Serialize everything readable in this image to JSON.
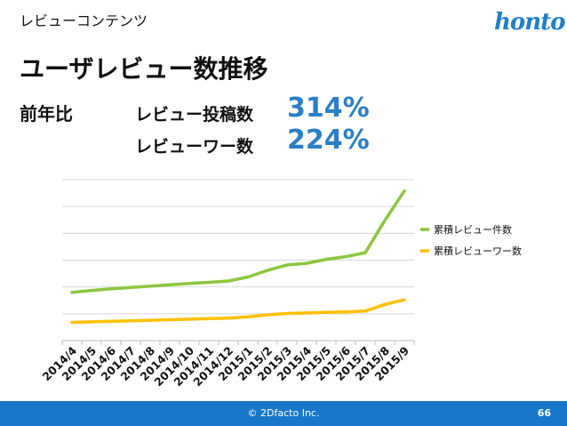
{
  "header": {
    "section": "レビューコンテンツ",
    "logo_text": "honto"
  },
  "title": "ユーザレビュー数推移",
  "yoy": {
    "label": "前年比",
    "items": [
      {
        "label": "レビュー投稿数",
        "value": "314%"
      },
      {
        "label": "レビューワー数",
        "value": "224%"
      }
    ]
  },
  "chart_data": {
    "type": "line",
    "title": "",
    "xlabel": "",
    "ylabel": "",
    "categories": [
      "2014/4",
      "2014/5",
      "2014/6",
      "2014/7",
      "2014/8",
      "2014/9",
      "2014/10",
      "2014/11",
      "2014/12",
      "2015/1",
      "2015/2",
      "2015/3",
      "2015/4",
      "2015/5",
      "2015/6",
      "2015/7",
      "2015/8",
      "2015/9"
    ],
    "series": [
      {
        "name": "累積レビュー件数",
        "color": "#8cc63f",
        "values": [
          1.8,
          1.87,
          1.93,
          1.98,
          2.03,
          2.08,
          2.13,
          2.17,
          2.22,
          2.37,
          2.62,
          2.82,
          2.88,
          3.03,
          3.13,
          3.28,
          4.48,
          5.58
        ]
      },
      {
        "name": "累積レビューワー数",
        "color": "#ffc000",
        "values": [
          0.68,
          0.7,
          0.72,
          0.74,
          0.76,
          0.78,
          0.8,
          0.82,
          0.84,
          0.89,
          0.96,
          1.01,
          1.03,
          1.05,
          1.07,
          1.1,
          1.35,
          1.52
        ]
      }
    ],
    "ylim": [
      0,
      6
    ],
    "grid": true,
    "legend": "right"
  },
  "footer": {
    "copyright": "© 2Dfacto Inc.",
    "page": "66"
  }
}
